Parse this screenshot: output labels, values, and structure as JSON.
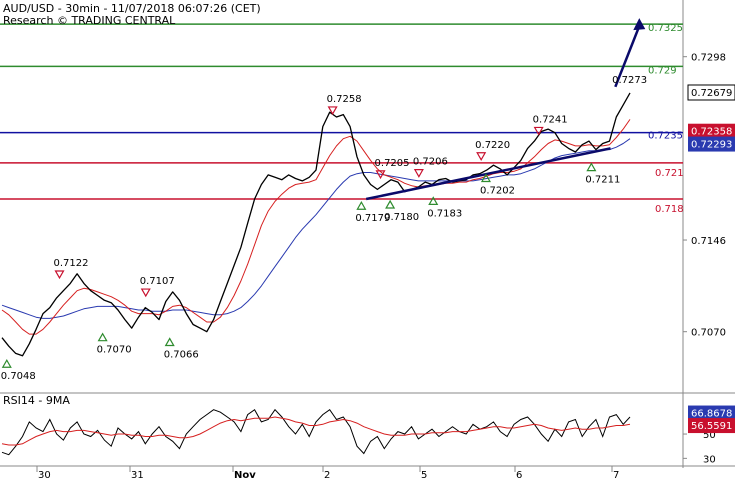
{
  "header": {
    "line1": "AUD/USD - 30min - 11/07/2018 06:07:26 (CET)",
    "line2": "Research © TRADING CENTRAL"
  },
  "rsi_label": "RSI14 - 9MA",
  "colors": {
    "resistance_green": "#2e8b2e",
    "support_red": "#c8102e",
    "pivot_blue": "#1010a0",
    "ma_fast_red": "#d62020",
    "ma_slow_blue": "#2a3ab0",
    "price_black": "#000000",
    "up_marker_green": "#2e8b2e",
    "down_marker_red": "#c8102e"
  },
  "chart_data": [
    {
      "type": "line",
      "title": "AUD/USD - 30min",
      "ylim": [
        0.702,
        0.7345
      ],
      "x_ticks": [
        "30",
        "31",
        "Nov",
        "2",
        "5",
        "6",
        "7"
      ],
      "y_ticks": [
        "0.7298",
        "0.7146",
        "0.7070"
      ],
      "price_axis_tags": [
        {
          "label": "0.7325",
          "value": 0.7325,
          "color": "green"
        },
        {
          "label": "0.729",
          "value": 0.729,
          "color": "green"
        },
        {
          "label": "0.72679",
          "value": 0.72679,
          "color": "current"
        },
        {
          "label": "0.7235",
          "value": 0.7235,
          "color": "blue"
        },
        {
          "label": "0.72358",
          "value": 0.72358,
          "color": "red-box"
        },
        {
          "label": "0.72293",
          "value": 0.72293,
          "color": "blue-box"
        },
        {
          "label": "0.721",
          "value": 0.721,
          "color": "red"
        },
        {
          "label": "0.718",
          "value": 0.718,
          "color": "red"
        }
      ],
      "levels": [
        {
          "name": "resistance-2",
          "value": 0.7325,
          "color": "green"
        },
        {
          "name": "resistance-1",
          "value": 0.729,
          "color": "green"
        },
        {
          "name": "pivot",
          "value": 0.7235,
          "color": "blue"
        },
        {
          "name": "support-1",
          "value": 0.721,
          "color": "red"
        },
        {
          "name": "support-2",
          "value": 0.718,
          "color": "red"
        }
      ],
      "markers": [
        {
          "label": "0.7048",
          "value": 0.7048,
          "kind": "low",
          "session": 0.05
        },
        {
          "label": "0.7070",
          "value": 0.707,
          "kind": "low",
          "session": 1.05
        },
        {
          "label": "0.7122",
          "value": 0.7122,
          "kind": "high",
          "session": 0.6
        },
        {
          "label": "0.7107",
          "value": 0.7107,
          "kind": "high",
          "session": 1.5
        },
        {
          "label": "0.7066",
          "value": 0.7066,
          "kind": "low",
          "session": 1.75
        },
        {
          "label": "0.7258",
          "value": 0.7258,
          "kind": "high",
          "session": 3.45
        },
        {
          "label": "0.7179",
          "value": 0.7179,
          "kind": "low",
          "session": 3.75
        },
        {
          "label": "0.7180",
          "value": 0.718,
          "kind": "low",
          "session": 4.05
        },
        {
          "label": "0.7205",
          "value": 0.7205,
          "kind": "high",
          "session": 3.95
        },
        {
          "label": "0.7206",
          "value": 0.7206,
          "kind": "high",
          "session": 4.35
        },
        {
          "label": "0.7183",
          "value": 0.7183,
          "kind": "low",
          "session": 4.5
        },
        {
          "label": "0.7220",
          "value": 0.722,
          "kind": "high",
          "session": 5.0
        },
        {
          "label": "0.7202",
          "value": 0.7202,
          "kind": "low",
          "session": 5.05
        },
        {
          "label": "0.7241",
          "value": 0.7241,
          "kind": "high",
          "session": 5.6
        },
        {
          "label": "0.7211",
          "value": 0.7211,
          "kind": "low",
          "session": 6.15
        },
        {
          "label": "0.7273",
          "value": 0.7273,
          "kind": "plain",
          "session": 6.45
        }
      ],
      "trendline": {
        "from": {
          "session": 3.8,
          "value": 0.718
        },
        "to": {
          "session": 6.35,
          "value": 0.7222
        }
      },
      "forecast_arrow": {
        "from": {
          "session": 6.4,
          "value": 0.7273
        },
        "to": {
          "session": 6.65,
          "value": 0.733
        }
      },
      "series": [
        {
          "kind": "price",
          "values": [
            0.7065,
            0.7058,
            0.7052,
            0.705,
            0.706,
            0.7072,
            0.7085,
            0.709,
            0.7098,
            0.7104,
            0.711,
            0.7118,
            0.711,
            0.7104,
            0.71,
            0.7096,
            0.7094,
            0.7088,
            0.708,
            0.7073,
            0.7082,
            0.709,
            0.7086,
            0.708,
            0.7095,
            0.7103,
            0.7096,
            0.7085,
            0.7076,
            0.7073,
            0.707,
            0.708,
            0.7095,
            0.711,
            0.7125,
            0.714,
            0.716,
            0.718,
            0.7192,
            0.72,
            0.7198,
            0.7196,
            0.72,
            0.7197,
            0.7195,
            0.7198,
            0.7204,
            0.724,
            0.7252,
            0.7248,
            0.725,
            0.724,
            0.7215,
            0.72,
            0.7192,
            0.7188,
            0.7192,
            0.7196,
            0.7194,
            0.7186,
            0.7188,
            0.719,
            0.7194,
            0.7192,
            0.7196,
            0.7197,
            0.7194,
            0.7195,
            0.7196,
            0.72,
            0.7201,
            0.7204,
            0.7208,
            0.7205,
            0.72,
            0.7206,
            0.7212,
            0.7222,
            0.7228,
            0.7236,
            0.7238,
            0.7235,
            0.7226,
            0.7222,
            0.7219,
            0.7225,
            0.7228,
            0.7221,
            0.7226,
            0.7228,
            0.7248,
            0.7258,
            0.7268
          ]
        },
        {
          "kind": "ma-fast",
          "values": [
            0.7088,
            0.7084,
            0.7078,
            0.7072,
            0.7068,
            0.7068,
            0.7072,
            0.7078,
            0.7085,
            0.7092,
            0.7098,
            0.7104,
            0.7106,
            0.7105,
            0.7103,
            0.7101,
            0.7099,
            0.7096,
            0.7092,
            0.7087,
            0.7085,
            0.7085,
            0.7085,
            0.7084,
            0.7087,
            0.7091,
            0.7092,
            0.709,
            0.7086,
            0.7082,
            0.7078,
            0.7078,
            0.7082,
            0.709,
            0.71,
            0.7112,
            0.7126,
            0.7142,
            0.7158,
            0.717,
            0.7178,
            0.7184,
            0.7189,
            0.7192,
            0.7193,
            0.7194,
            0.7196,
            0.7206,
            0.7216,
            0.7224,
            0.723,
            0.7232,
            0.7228,
            0.722,
            0.7212,
            0.7205,
            0.72,
            0.7198,
            0.7196,
            0.7193,
            0.7191,
            0.719,
            0.7191,
            0.7191,
            0.7192,
            0.7193,
            0.7193,
            0.7194,
            0.7194,
            0.7196,
            0.7197,
            0.7199,
            0.7201,
            0.7202,
            0.7202,
            0.7203,
            0.7205,
            0.721,
            0.7215,
            0.7221,
            0.7226,
            0.7229,
            0.7228,
            0.7226,
            0.7224,
            0.7224,
            0.7225,
            0.7224,
            0.7224,
            0.7225,
            0.7231,
            0.7238,
            0.7246
          ]
        },
        {
          "kind": "ma-slow",
          "values": [
            0.7092,
            0.709,
            0.7088,
            0.7086,
            0.7084,
            0.7082,
            0.7081,
            0.7081,
            0.7082,
            0.7083,
            0.7085,
            0.7087,
            0.7089,
            0.709,
            0.7091,
            0.7091,
            0.7091,
            0.7091,
            0.709,
            0.7089,
            0.7088,
            0.7088,
            0.7087,
            0.7087,
            0.7087,
            0.7088,
            0.7088,
            0.7088,
            0.7087,
            0.7086,
            0.7085,
            0.7084,
            0.7084,
            0.7085,
            0.7087,
            0.709,
            0.7095,
            0.7101,
            0.7108,
            0.7116,
            0.7124,
            0.7132,
            0.714,
            0.7148,
            0.7155,
            0.7161,
            0.7167,
            0.7174,
            0.7181,
            0.7188,
            0.7194,
            0.7199,
            0.7201,
            0.7202,
            0.7202,
            0.7201,
            0.72,
            0.7199,
            0.7198,
            0.7197,
            0.7196,
            0.7195,
            0.7195,
            0.7195,
            0.7195,
            0.7195,
            0.7195,
            0.7195,
            0.7195,
            0.7195,
            0.7196,
            0.7197,
            0.7198,
            0.7199,
            0.72,
            0.72,
            0.7201,
            0.7203,
            0.7205,
            0.7208,
            0.7211,
            0.7214,
            0.7216,
            0.7217,
            0.7218,
            0.7219,
            0.722,
            0.722,
            0.7221,
            0.7221,
            0.7223,
            0.7226,
            0.723
          ]
        }
      ]
    },
    {
      "type": "line",
      "title": "RSI14 - 9MA",
      "ylim": [
        27,
        78
      ],
      "y_ticks": [
        "50",
        "30"
      ],
      "price_axis_tags": [
        {
          "label": "66.8678",
          "value": 66.8678,
          "color": "blue-box"
        },
        {
          "label": "56.5591",
          "value": 56.5591,
          "color": "red-box"
        }
      ],
      "series": [
        {
          "kind": "rsi",
          "values": [
            35,
            33,
            40,
            48,
            60,
            55,
            52,
            62,
            50,
            45,
            55,
            60,
            50,
            48,
            53,
            45,
            40,
            55,
            50,
            46,
            52,
            42,
            50,
            56,
            48,
            44,
            38,
            50,
            56,
            62,
            66,
            70,
            68,
            64,
            60,
            52,
            66,
            70,
            60,
            62,
            70,
            64,
            56,
            50,
            58,
            48,
            60,
            66,
            70,
            62,
            64,
            56,
            40,
            34,
            44,
            48,
            38,
            46,
            52,
            50,
            56,
            46,
            50,
            54,
            48,
            52,
            56,
            52,
            50,
            58,
            54,
            56,
            60,
            52,
            48,
            58,
            62,
            64,
            58,
            50,
            44,
            54,
            48,
            60,
            62,
            48,
            56,
            62,
            48,
            64,
            66,
            58,
            64
          ]
        },
        {
          "kind": "rsi-ma",
          "values": [
            42,
            41,
            41,
            42,
            45,
            48,
            50,
            52,
            53,
            52,
            52,
            53,
            53,
            52,
            51,
            50,
            49,
            50,
            50,
            49,
            49,
            48,
            48,
            49,
            49,
            48,
            47,
            47,
            48,
            50,
            53,
            56,
            59,
            61,
            62,
            61,
            62,
            63,
            63,
            63,
            64,
            63,
            62,
            60,
            59,
            57,
            57,
            58,
            60,
            61,
            62,
            61,
            59,
            56,
            54,
            52,
            50,
            49,
            49,
            49,
            50,
            50,
            50,
            51,
            51,
            51,
            52,
            52,
            52,
            53,
            54,
            55,
            56,
            56,
            55,
            55,
            56,
            57,
            58,
            57,
            55,
            54,
            53,
            54,
            55,
            54,
            54,
            55,
            55,
            56,
            57,
            57,
            58
          ]
        }
      ]
    }
  ]
}
